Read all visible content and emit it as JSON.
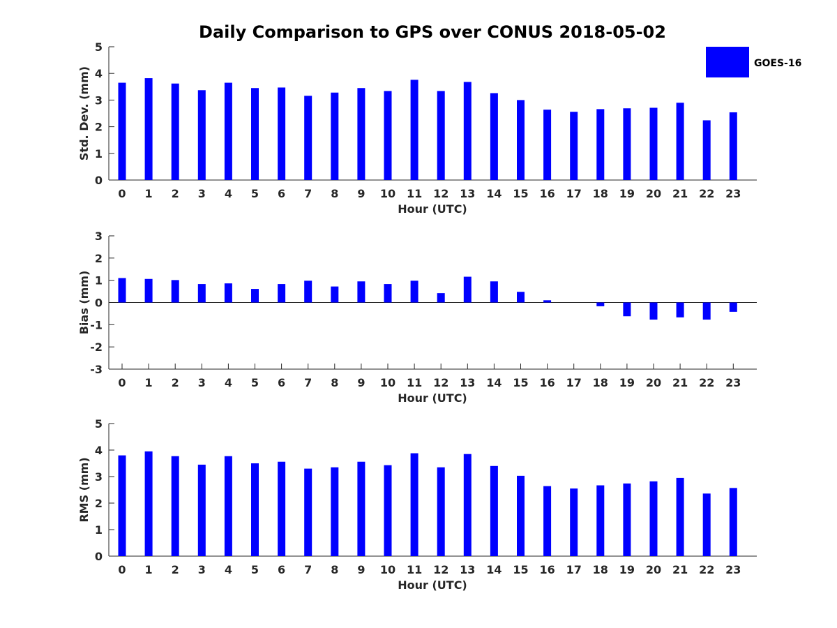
{
  "chart_data": {
    "title": "Daily Comparison to GPS over CONUS 2018-05-02",
    "legend": {
      "label": "GOES-16",
      "color": "#0000ff",
      "placement": "top-right"
    },
    "panels": [
      {
        "type": "bar",
        "xlabel": "Hour (UTC)",
        "ylabel": "Std. Dev. (mm)",
        "ylim": [
          0,
          5
        ],
        "yticks": [
          0,
          1,
          2,
          3,
          4,
          5
        ],
        "categories": [
          "0",
          "1",
          "2",
          "3",
          "4",
          "5",
          "6",
          "7",
          "8",
          "9",
          "10",
          "11",
          "12",
          "13",
          "14",
          "15",
          "16",
          "17",
          "18",
          "19",
          "20",
          "21",
          "22",
          "23"
        ],
        "series": [
          {
            "name": "GOES-16",
            "values": [
              3.65,
              3.82,
              3.62,
              3.37,
              3.65,
              3.45,
              3.47,
              3.16,
              3.28,
              3.45,
              3.34,
              3.76,
              3.34,
              3.68,
              3.26,
              3.0,
              2.64,
              2.56,
              2.66,
              2.69,
              2.71,
              2.9,
              2.24,
              2.54
            ]
          }
        ]
      },
      {
        "type": "bar",
        "xlabel": "Hour (UTC)",
        "ylabel": "Bias (mm)",
        "ylim": [
          -3,
          3
        ],
        "yticks": [
          -3,
          -2,
          -1,
          0,
          1,
          2,
          3
        ],
        "zero_line": true,
        "categories": [
          "0",
          "1",
          "2",
          "3",
          "4",
          "5",
          "6",
          "7",
          "8",
          "9",
          "10",
          "11",
          "12",
          "13",
          "14",
          "15",
          "16",
          "17",
          "18",
          "19",
          "20",
          "21",
          "22",
          "23"
        ],
        "series": [
          {
            "name": "GOES-16",
            "values": [
              1.1,
              1.06,
              1.01,
              0.83,
              0.86,
              0.61,
              0.83,
              0.98,
              0.72,
              0.95,
              0.83,
              0.98,
              0.42,
              1.16,
              0.95,
              0.48,
              0.1,
              0.0,
              -0.17,
              -0.62,
              -0.77,
              -0.67,
              -0.77,
              -0.42
            ]
          }
        ]
      },
      {
        "type": "bar",
        "xlabel": "Hour (UTC)",
        "ylabel": "RMS (mm)",
        "ylim": [
          0,
          5
        ],
        "yticks": [
          0,
          1,
          2,
          3,
          4,
          5
        ],
        "categories": [
          "0",
          "1",
          "2",
          "3",
          "4",
          "5",
          "6",
          "7",
          "8",
          "9",
          "10",
          "11",
          "12",
          "13",
          "14",
          "15",
          "16",
          "17",
          "18",
          "19",
          "20",
          "21",
          "22",
          "23"
        ],
        "series": [
          {
            "name": "GOES-16",
            "values": [
              3.8,
              3.95,
              3.77,
              3.45,
              3.77,
              3.5,
              3.56,
              3.3,
              3.35,
              3.56,
              3.43,
              3.88,
              3.35,
              3.85,
              3.4,
              3.03,
              2.64,
              2.55,
              2.67,
              2.74,
              2.82,
              2.95,
              2.36,
              2.57
            ]
          }
        ]
      }
    ]
  }
}
